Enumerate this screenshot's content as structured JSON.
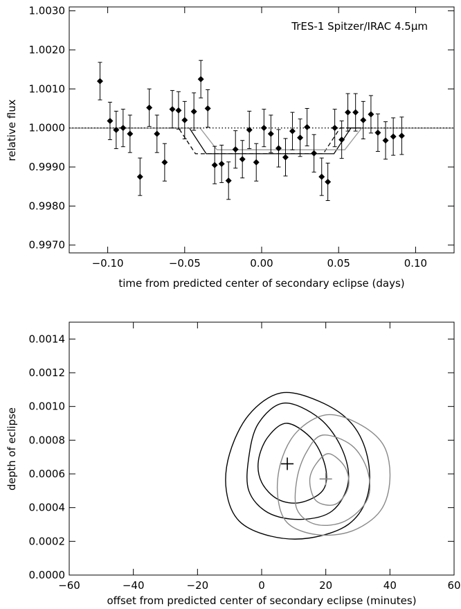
{
  "chart_data": [
    {
      "type": "scatter",
      "title": "",
      "annotation": "TrES-1 Spitzer/IRAC 4.5μm",
      "xlabel": "time from predicted center of secondary eclipse (days)",
      "ylabel": "relative flux",
      "xlim": [
        -0.125,
        0.125
      ],
      "ylim": [
        0.9968,
        1.0031
      ],
      "xticks": [
        -0.1,
        -0.05,
        0.0,
        0.05,
        0.1
      ],
      "xtick_labels": [
        "−0.10",
        "−0.05",
        "0.00",
        "0.05",
        "0.10"
      ],
      "yticks": [
        0.997,
        0.998,
        0.999,
        1.0,
        1.001,
        1.002,
        1.003
      ],
      "ytick_labels": [
        "0.9970",
        "0.9980",
        "0.9990",
        "1.0000",
        "1.0010",
        "1.0020",
        "1.0030"
      ],
      "grid": false,
      "series": [
        {
          "x": [
            -0.105,
            -0.0985,
            -0.0945,
            -0.09,
            -0.0855,
            -0.079,
            -0.073,
            -0.068,
            -0.063,
            -0.058,
            -0.054,
            -0.05,
            -0.044,
            -0.0395,
            -0.035,
            -0.0305,
            -0.026,
            -0.0215,
            -0.017,
            -0.0125,
            -0.008,
            -0.0035,
            0.0015,
            0.006,
            0.011,
            0.0155,
            0.02,
            0.025,
            0.0295,
            0.034,
            0.039,
            0.043,
            0.0475,
            0.052,
            0.056,
            0.061,
            0.066,
            0.071,
            0.0755,
            0.0805,
            0.0855,
            0.091
          ],
          "y": [
            1.0012,
            1.00018,
            0.99995,
            1.0,
            0.99985,
            0.99875,
            1.00052,
            0.99985,
            0.99912,
            1.00048,
            1.00045,
            1.0002,
            1.00042,
            1.00125,
            1.0005,
            0.99905,
            0.99908,
            0.99865,
            0.99945,
            0.9992,
            0.99995,
            0.99912,
            1.0,
            0.99985,
            0.99948,
            0.99925,
            0.99992,
            0.99975,
            1.00002,
            0.99935,
            0.99875,
            0.99862,
            1.0,
            0.9997,
            1.0004,
            1.0004,
            1.0002,
            1.00035,
            0.99988,
            0.99968,
            0.99978,
            0.9998
          ],
          "err": [
            0.00048,
            0.00048,
            0.00048,
            0.00048,
            0.00048,
            0.00048,
            0.00048,
            0.00048,
            0.00048,
            0.00048,
            0.00048,
            0.00048,
            0.00048,
            0.00048,
            0.00048,
            0.00048,
            0.00048,
            0.00048,
            0.00048,
            0.00048,
            0.00048,
            0.00048,
            0.00048,
            0.00048,
            0.00048,
            0.00048,
            0.00048,
            0.00048,
            0.00048,
            0.00048,
            0.00048,
            0.00048,
            0.00048,
            0.00048,
            0.00048,
            0.00048,
            0.00048,
            0.00048,
            0.00048,
            0.00048,
            0.00048,
            0.00048
          ],
          "marker": "diamond",
          "color": "#000000"
        }
      ],
      "model_curves": [
        {
          "style": "solid",
          "color": "#000000",
          "x": [
            -0.125,
            -0.047,
            -0.036,
            0.047,
            0.058,
            0.125
          ],
          "y": [
            1.0,
            1.0,
            0.99934,
            0.99934,
            1.0,
            1.0
          ]
        },
        {
          "style": "dashed",
          "color": "#000000",
          "x": [
            -0.125,
            -0.054,
            -0.043,
            0.04,
            0.051,
            0.125
          ],
          "y": [
            1.0,
            1.0,
            0.99934,
            0.99934,
            1.0,
            1.0
          ]
        },
        {
          "style": "solid",
          "color": "#999999",
          "x": [
            -0.125,
            -0.04,
            -0.029,
            0.054,
            0.065,
            0.125
          ],
          "y": [
            1.0,
            1.0,
            0.99944,
            0.99944,
            1.0,
            1.0
          ]
        },
        {
          "style": "dotted",
          "color": "#000000",
          "x": [
            -0.125,
            0.125
          ],
          "y": [
            1.0,
            1.0
          ]
        }
      ]
    },
    {
      "type": "contour",
      "title": "",
      "xlabel": "offset from predicted center of secondary eclipse (minutes)",
      "ylabel": "depth of eclipse",
      "xlim": [
        -60,
        60
      ],
      "ylim": [
        0.0,
        0.0015
      ],
      "xticks": [
        -60,
        -40,
        -20,
        0,
        20,
        40,
        60
      ],
      "xtick_labels": [
        "−60",
        "−40",
        "−20",
        "0",
        "20",
        "40",
        "60"
      ],
      "yticks": [
        0.0,
        0.0002,
        0.0004,
        0.0006,
        0.0008,
        0.001,
        0.0012,
        0.0014
      ],
      "ytick_labels": [
        "0.0000",
        "0.0002",
        "0.0004",
        "0.0006",
        "0.0008",
        "0.0010",
        "0.0012",
        "0.0014"
      ],
      "grid": false,
      "best_fits": [
        {
          "color": "#000000",
          "x": 8,
          "y": 0.00066
        },
        {
          "color": "#888888",
          "x": 20,
          "y": 0.00057
        }
      ],
      "contours": [
        {
          "color": "#000000",
          "x": [
            8,
            16,
            20,
            19,
            12,
            5,
            0,
            -1,
            2,
            8
          ],
          "y": [
            0.0009,
            0.0008,
            0.00063,
            0.0005,
            0.00043,
            0.00045,
            0.00055,
            0.00068,
            0.00082,
            0.0009
          ]
        },
        {
          "color": "#000000",
          "x": [
            7,
            18,
            25,
            27,
            22,
            12,
            2,
            -4,
            -4,
            -1,
            7
          ],
          "y": [
            0.00102,
            0.00093,
            0.00075,
            0.00055,
            0.00038,
            0.00033,
            0.00037,
            0.0005,
            0.0007,
            0.0009,
            0.00102
          ]
        },
        {
          "color": "#000000",
          "x": [
            6,
            18,
            28,
            33,
            33,
            27,
            15,
            3,
            -7,
            -11,
            -10,
            -4,
            6
          ],
          "y": [
            0.00108,
            0.00103,
            0.0009,
            0.0007,
            0.00047,
            0.0003,
            0.00022,
            0.00023,
            0.00032,
            0.0005,
            0.00072,
            0.00095,
            0.00108
          ]
        },
        {
          "color": "#888888",
          "x": [
            21,
            26,
            27,
            23,
            17,
            15,
            17,
            21
          ],
          "y": [
            0.00072,
            0.00064,
            0.00052,
            0.00042,
            0.00044,
            0.00056,
            0.00066,
            0.00072
          ]
        },
        {
          "color": "#888888",
          "x": [
            19,
            28,
            33,
            33,
            26,
            17,
            11,
            11,
            14,
            19
          ],
          "y": [
            0.00083,
            0.00077,
            0.00062,
            0.00045,
            0.00032,
            0.0003,
            0.00039,
            0.00057,
            0.00073,
            0.00083
          ]
        },
        {
          "color": "#888888",
          "x": [
            20,
            30,
            38,
            40,
            37,
            28,
            17,
            8,
            5,
            6,
            11,
            20
          ],
          "y": [
            0.00095,
            0.0009,
            0.00077,
            0.00057,
            0.00038,
            0.00026,
            0.00024,
            0.00031,
            0.00047,
            0.00067,
            0.00085,
            0.00095
          ]
        }
      ]
    }
  ]
}
